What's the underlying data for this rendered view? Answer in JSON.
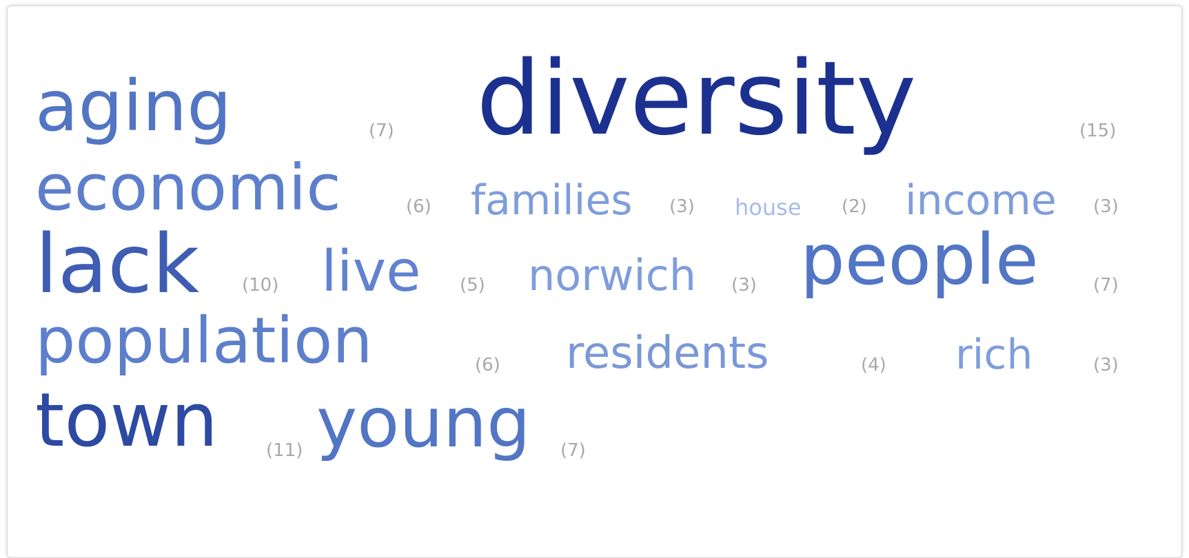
{
  "tag_cloud": {
    "terms": [
      {
        "word": "aging",
        "count": "(7)",
        "color": "#5275c4"
      },
      {
        "word": "diversity",
        "count": "(15)",
        "color": "#1c318f"
      },
      {
        "word": "economic",
        "count": "(6)",
        "color": "#5d7fcb"
      },
      {
        "word": "families",
        "count": "(3)",
        "color": "#7f9ddb"
      },
      {
        "word": "house",
        "count": "(2)",
        "color": "#a6bcec"
      },
      {
        "word": "income",
        "count": "(3)",
        "color": "#7f9ddb"
      },
      {
        "word": "lack",
        "count": "(10)",
        "color": "#3e5db3"
      },
      {
        "word": "live",
        "count": "(5)",
        "color": "#6282ce"
      },
      {
        "word": "norwich",
        "count": "(3)",
        "color": "#7f9ddb"
      },
      {
        "word": "people",
        "count": "(7)",
        "color": "#5275c4"
      },
      {
        "word": "population",
        "count": "(6)",
        "color": "#5d7fcb"
      },
      {
        "word": "residents",
        "count": "(4)",
        "color": "#7a98d8"
      },
      {
        "word": "rich",
        "count": "(3)",
        "color": "#7f9ddb"
      },
      {
        "word": "town",
        "count": "(11)",
        "color": "#2d4aa3"
      },
      {
        "word": "young",
        "count": "(7)",
        "color": "#5275c4"
      }
    ]
  }
}
